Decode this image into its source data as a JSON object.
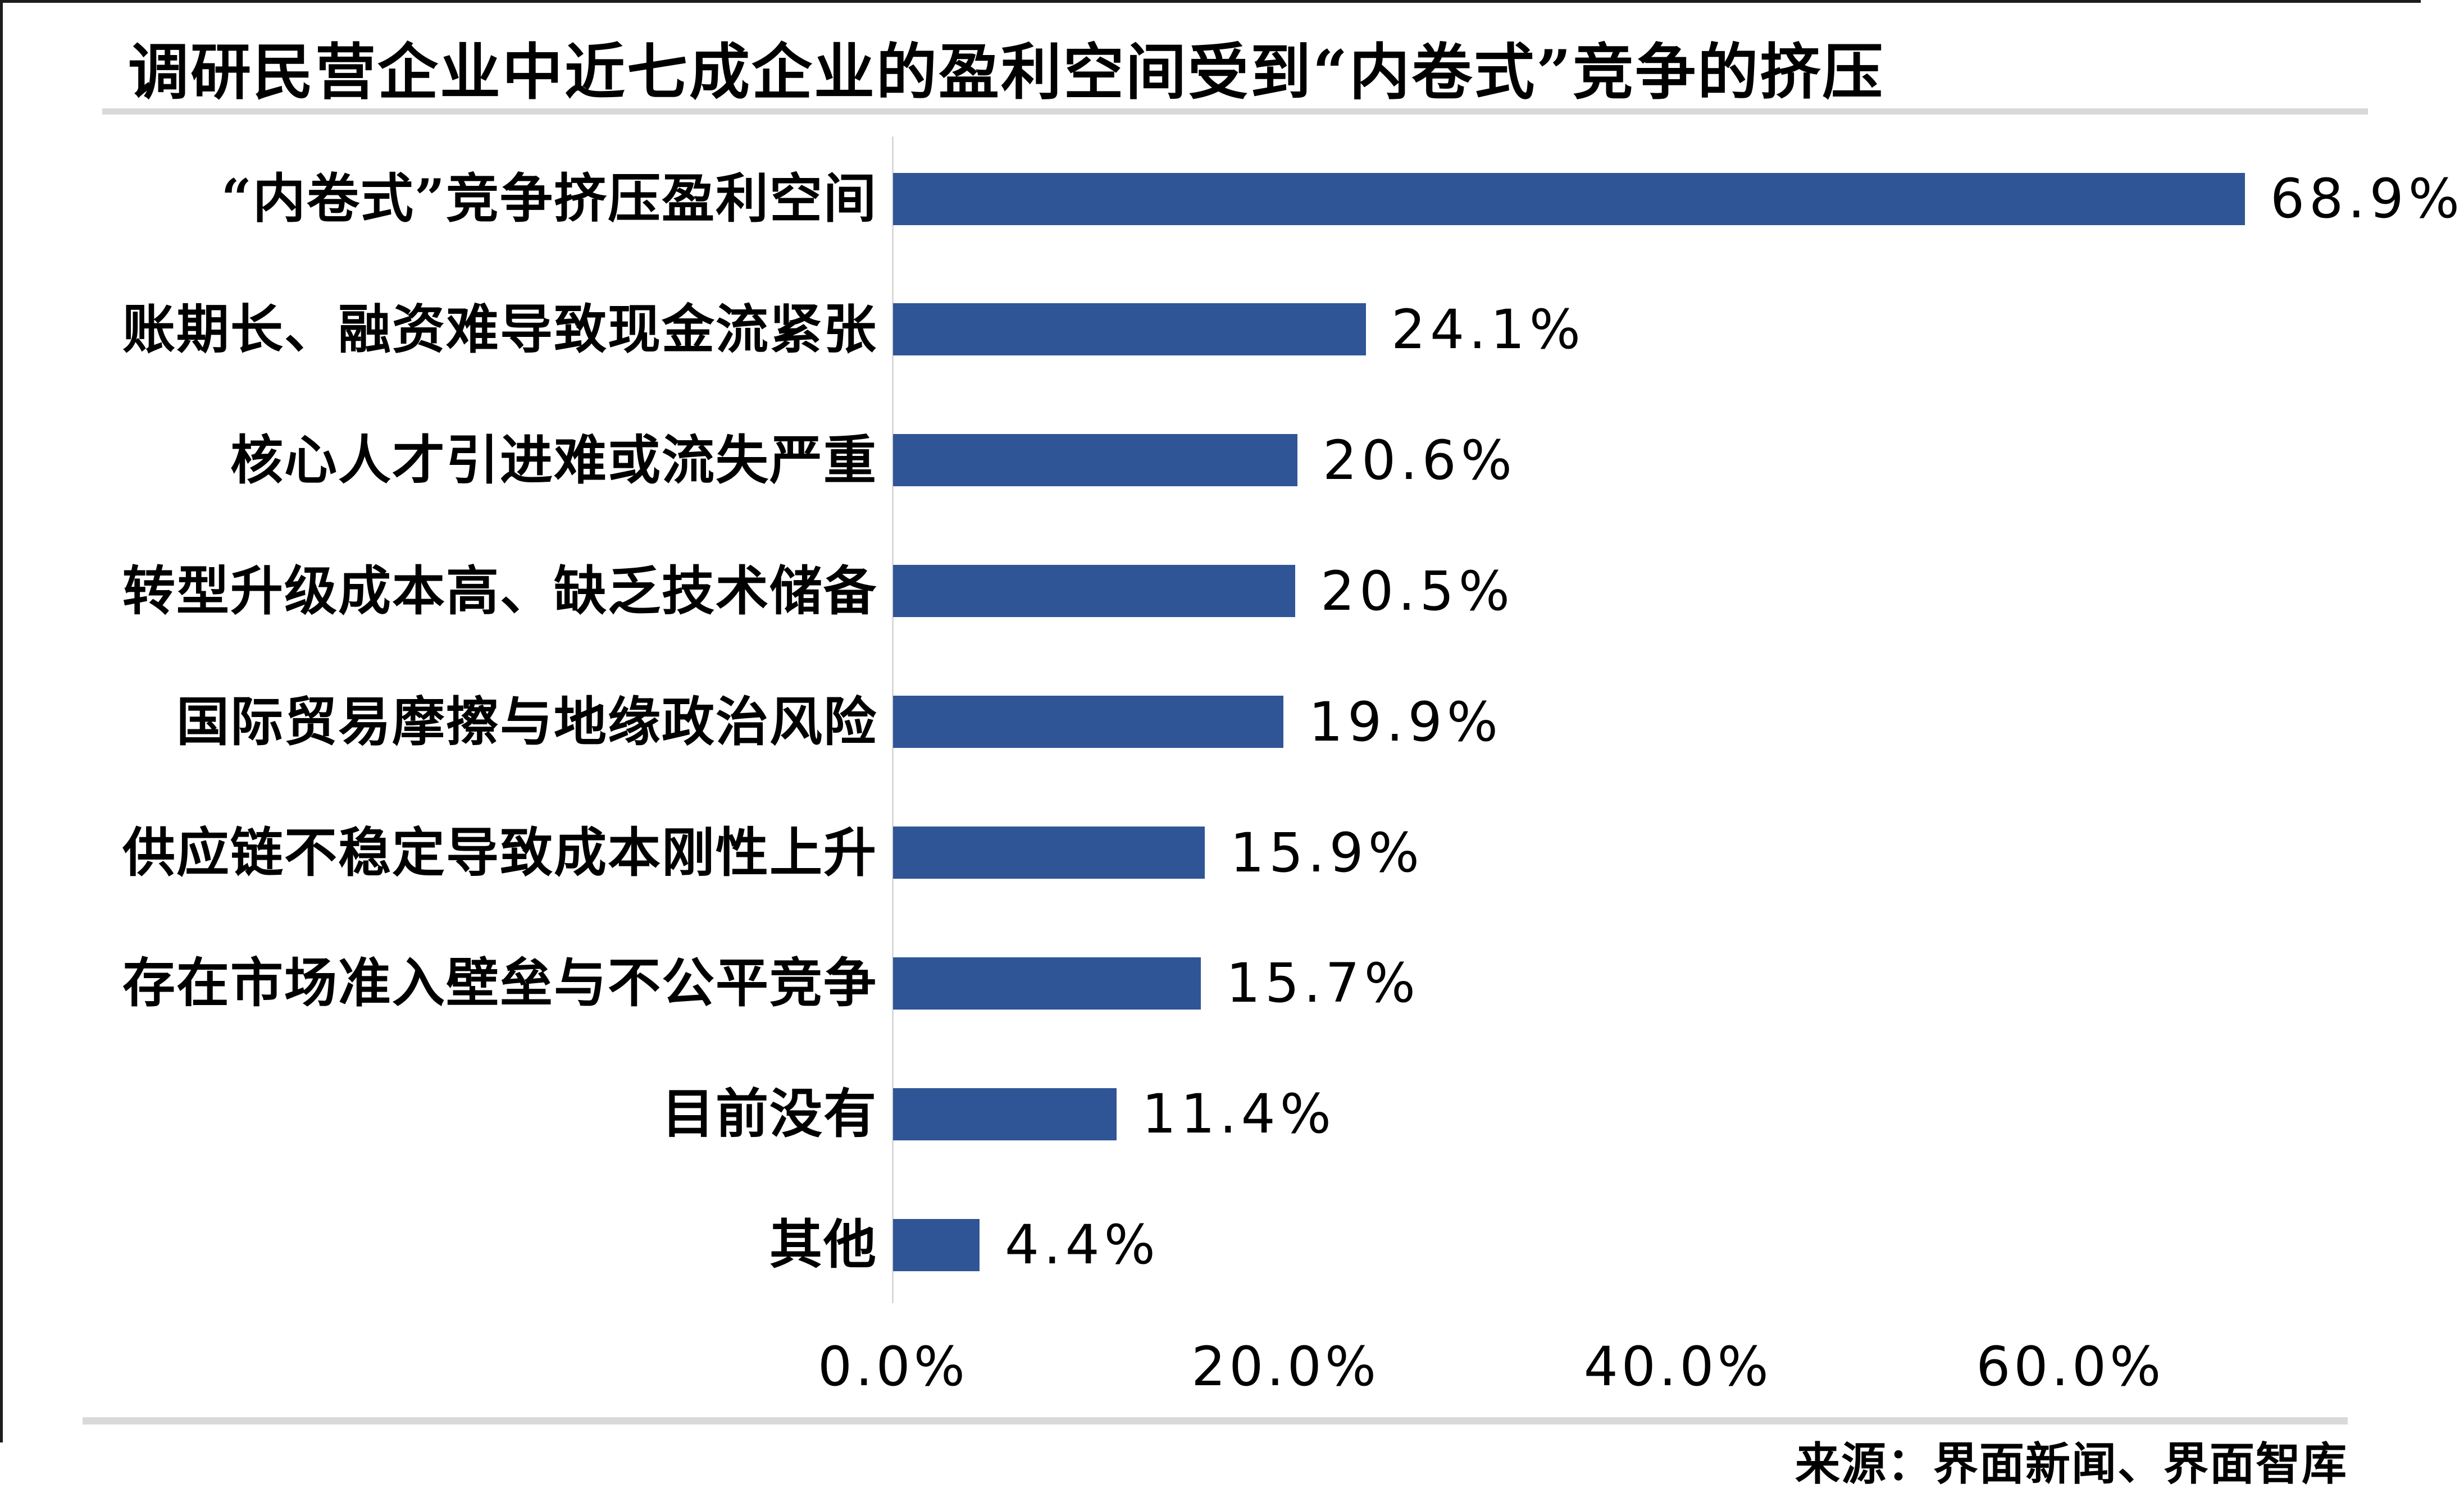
{
  "page": {
    "background": "#ffffff"
  },
  "header": {
    "title": "调研民营企业中近七成企业的盈利空间受到“内卷式”竞争的挤压"
  },
  "footer": {
    "source": "来源：界面新闻、界面智库"
  },
  "chart_data": {
    "type": "bar",
    "orientation": "horizontal",
    "title": "调研民营企业中近七成企业的盈利空间受到“内卷式”竞争的挤压",
    "categories": [
      "“内卷式”竞争挤压盈利空间",
      "账期长、融资难导致现金流紧张",
      "核心人才引进难或流失严重",
      "转型升级成本高、缺乏技术储备",
      "国际贸易摩擦与地缘政治风险",
      "供应链不稳定导致成本刚性上升",
      "存在市场准入壁垒与不公平竞争",
      "目前没有",
      "其他"
    ],
    "values": [
      68.9,
      24.1,
      20.6,
      20.5,
      19.9,
      15.9,
      15.7,
      11.4,
      4.4
    ],
    "value_labels": [
      "68.9%",
      "24.1%",
      "20.6%",
      "20.5%",
      "19.9%",
      "15.9%",
      "15.7%",
      "11.4%",
      "4.4%"
    ],
    "x_ticks": [
      {
        "label": "0.0%",
        "value": 0
      },
      {
        "label": "20.0%",
        "value": 20
      },
      {
        "label": "40.0%",
        "value": 40
      },
      {
        "label": "60.0%",
        "value": 60
      }
    ],
    "xlim": [
      0,
      70
    ],
    "xlabel": "",
    "ylabel": "",
    "grid": false,
    "legend": false,
    "bar_color": "#2F5596",
    "axis_line_color": "#D9D9D9",
    "divider_color": "#D9D9D9",
    "source": "来源：界面新闻、界面智库"
  }
}
